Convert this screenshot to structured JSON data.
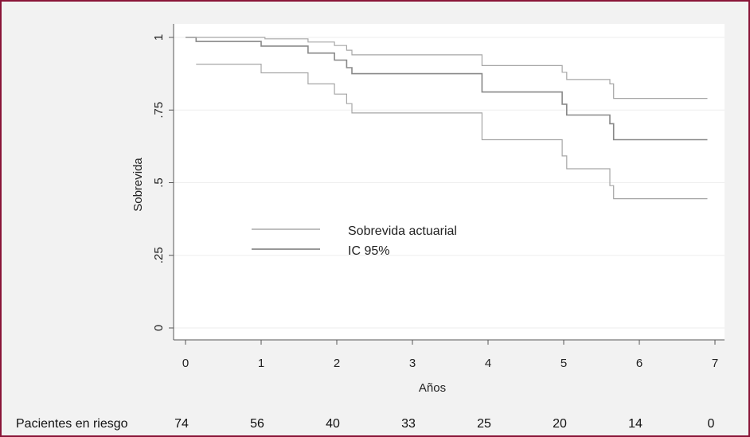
{
  "chart_data": {
    "type": "line",
    "xlabel": "Años",
    "ylabel": "Sobrevida",
    "xlim": [
      0,
      7
    ],
    "ylim": [
      0,
      1
    ],
    "xticks": [
      0,
      1,
      2,
      3,
      4,
      5,
      6,
      7
    ],
    "yticks": [
      {
        "value": 0,
        "label": "0"
      },
      {
        "value": 0.25,
        "label": ".25"
      },
      {
        "value": 0.5,
        "label": ".5"
      },
      {
        "value": 0.75,
        "label": ".75"
      },
      {
        "value": 1,
        "label": "1"
      }
    ],
    "grid": true,
    "legend": {
      "placement": "center-left",
      "entries": [
        "Sobrevida actuarial",
        "IC 95%"
      ]
    },
    "series": [
      {
        "name": "Sobrevida actuarial",
        "color": "#888888",
        "points": [
          [
            0,
            1.0
          ],
          [
            0.14,
            1.0
          ],
          [
            0.14,
            0.986
          ],
          [
            1.0,
            0.986
          ],
          [
            1.0,
            0.97
          ],
          [
            1.62,
            0.97
          ],
          [
            1.62,
            0.946
          ],
          [
            1.97,
            0.946
          ],
          [
            1.97,
            0.922
          ],
          [
            2.13,
            0.922
          ],
          [
            2.13,
            0.896
          ],
          [
            2.2,
            0.896
          ],
          [
            2.2,
            0.875
          ],
          [
            3.92,
            0.875
          ],
          [
            3.92,
            0.812
          ],
          [
            4.98,
            0.812
          ],
          [
            4.98,
            0.77
          ],
          [
            5.04,
            0.77
          ],
          [
            5.04,
            0.733
          ],
          [
            5.61,
            0.733
          ],
          [
            5.61,
            0.703
          ],
          [
            5.66,
            0.703
          ],
          [
            5.66,
            0.648
          ],
          [
            6.9,
            0.648
          ]
        ]
      },
      {
        "name": "IC 95% superior",
        "color": "#a6a6a6",
        "points": [
          [
            0,
            1.0
          ],
          [
            1.05,
            1.0
          ],
          [
            1.05,
            0.995
          ],
          [
            1.62,
            0.995
          ],
          [
            1.62,
            0.984
          ],
          [
            1.97,
            0.984
          ],
          [
            1.97,
            0.972
          ],
          [
            2.13,
            0.972
          ],
          [
            2.13,
            0.956
          ],
          [
            2.2,
            0.956
          ],
          [
            2.2,
            0.94
          ],
          [
            3.92,
            0.94
          ],
          [
            3.92,
            0.903
          ],
          [
            4.98,
            0.903
          ],
          [
            4.98,
            0.88
          ],
          [
            5.04,
            0.88
          ],
          [
            5.04,
            0.855
          ],
          [
            5.61,
            0.855
          ],
          [
            5.61,
            0.84
          ],
          [
            5.66,
            0.84
          ],
          [
            5.66,
            0.79
          ],
          [
            6.9,
            0.79
          ]
        ]
      },
      {
        "name": "IC 95% inferior",
        "color": "#a6a6a6",
        "points": [
          [
            0.14,
            0.908
          ],
          [
            1.0,
            0.908
          ],
          [
            1.0,
            0.878
          ],
          [
            1.62,
            0.878
          ],
          [
            1.62,
            0.84
          ],
          [
            1.97,
            0.84
          ],
          [
            1.97,
            0.805
          ],
          [
            2.13,
            0.805
          ],
          [
            2.13,
            0.772
          ],
          [
            2.2,
            0.772
          ],
          [
            2.2,
            0.74
          ],
          [
            3.92,
            0.74
          ],
          [
            3.92,
            0.648
          ],
          [
            4.98,
            0.648
          ],
          [
            4.98,
            0.592
          ],
          [
            5.04,
            0.592
          ],
          [
            5.04,
            0.548
          ],
          [
            5.61,
            0.548
          ],
          [
            5.61,
            0.49
          ],
          [
            5.66,
            0.49
          ],
          [
            5.66,
            0.445
          ],
          [
            6.9,
            0.445
          ]
        ]
      }
    ]
  },
  "at_risk": {
    "label": "Pacientes en riesgo",
    "x": [
      0,
      1,
      2,
      3,
      4,
      5,
      6,
      7
    ],
    "counts": [
      "74",
      "56",
      "40",
      "33",
      "25",
      "20",
      "14",
      "0"
    ]
  }
}
